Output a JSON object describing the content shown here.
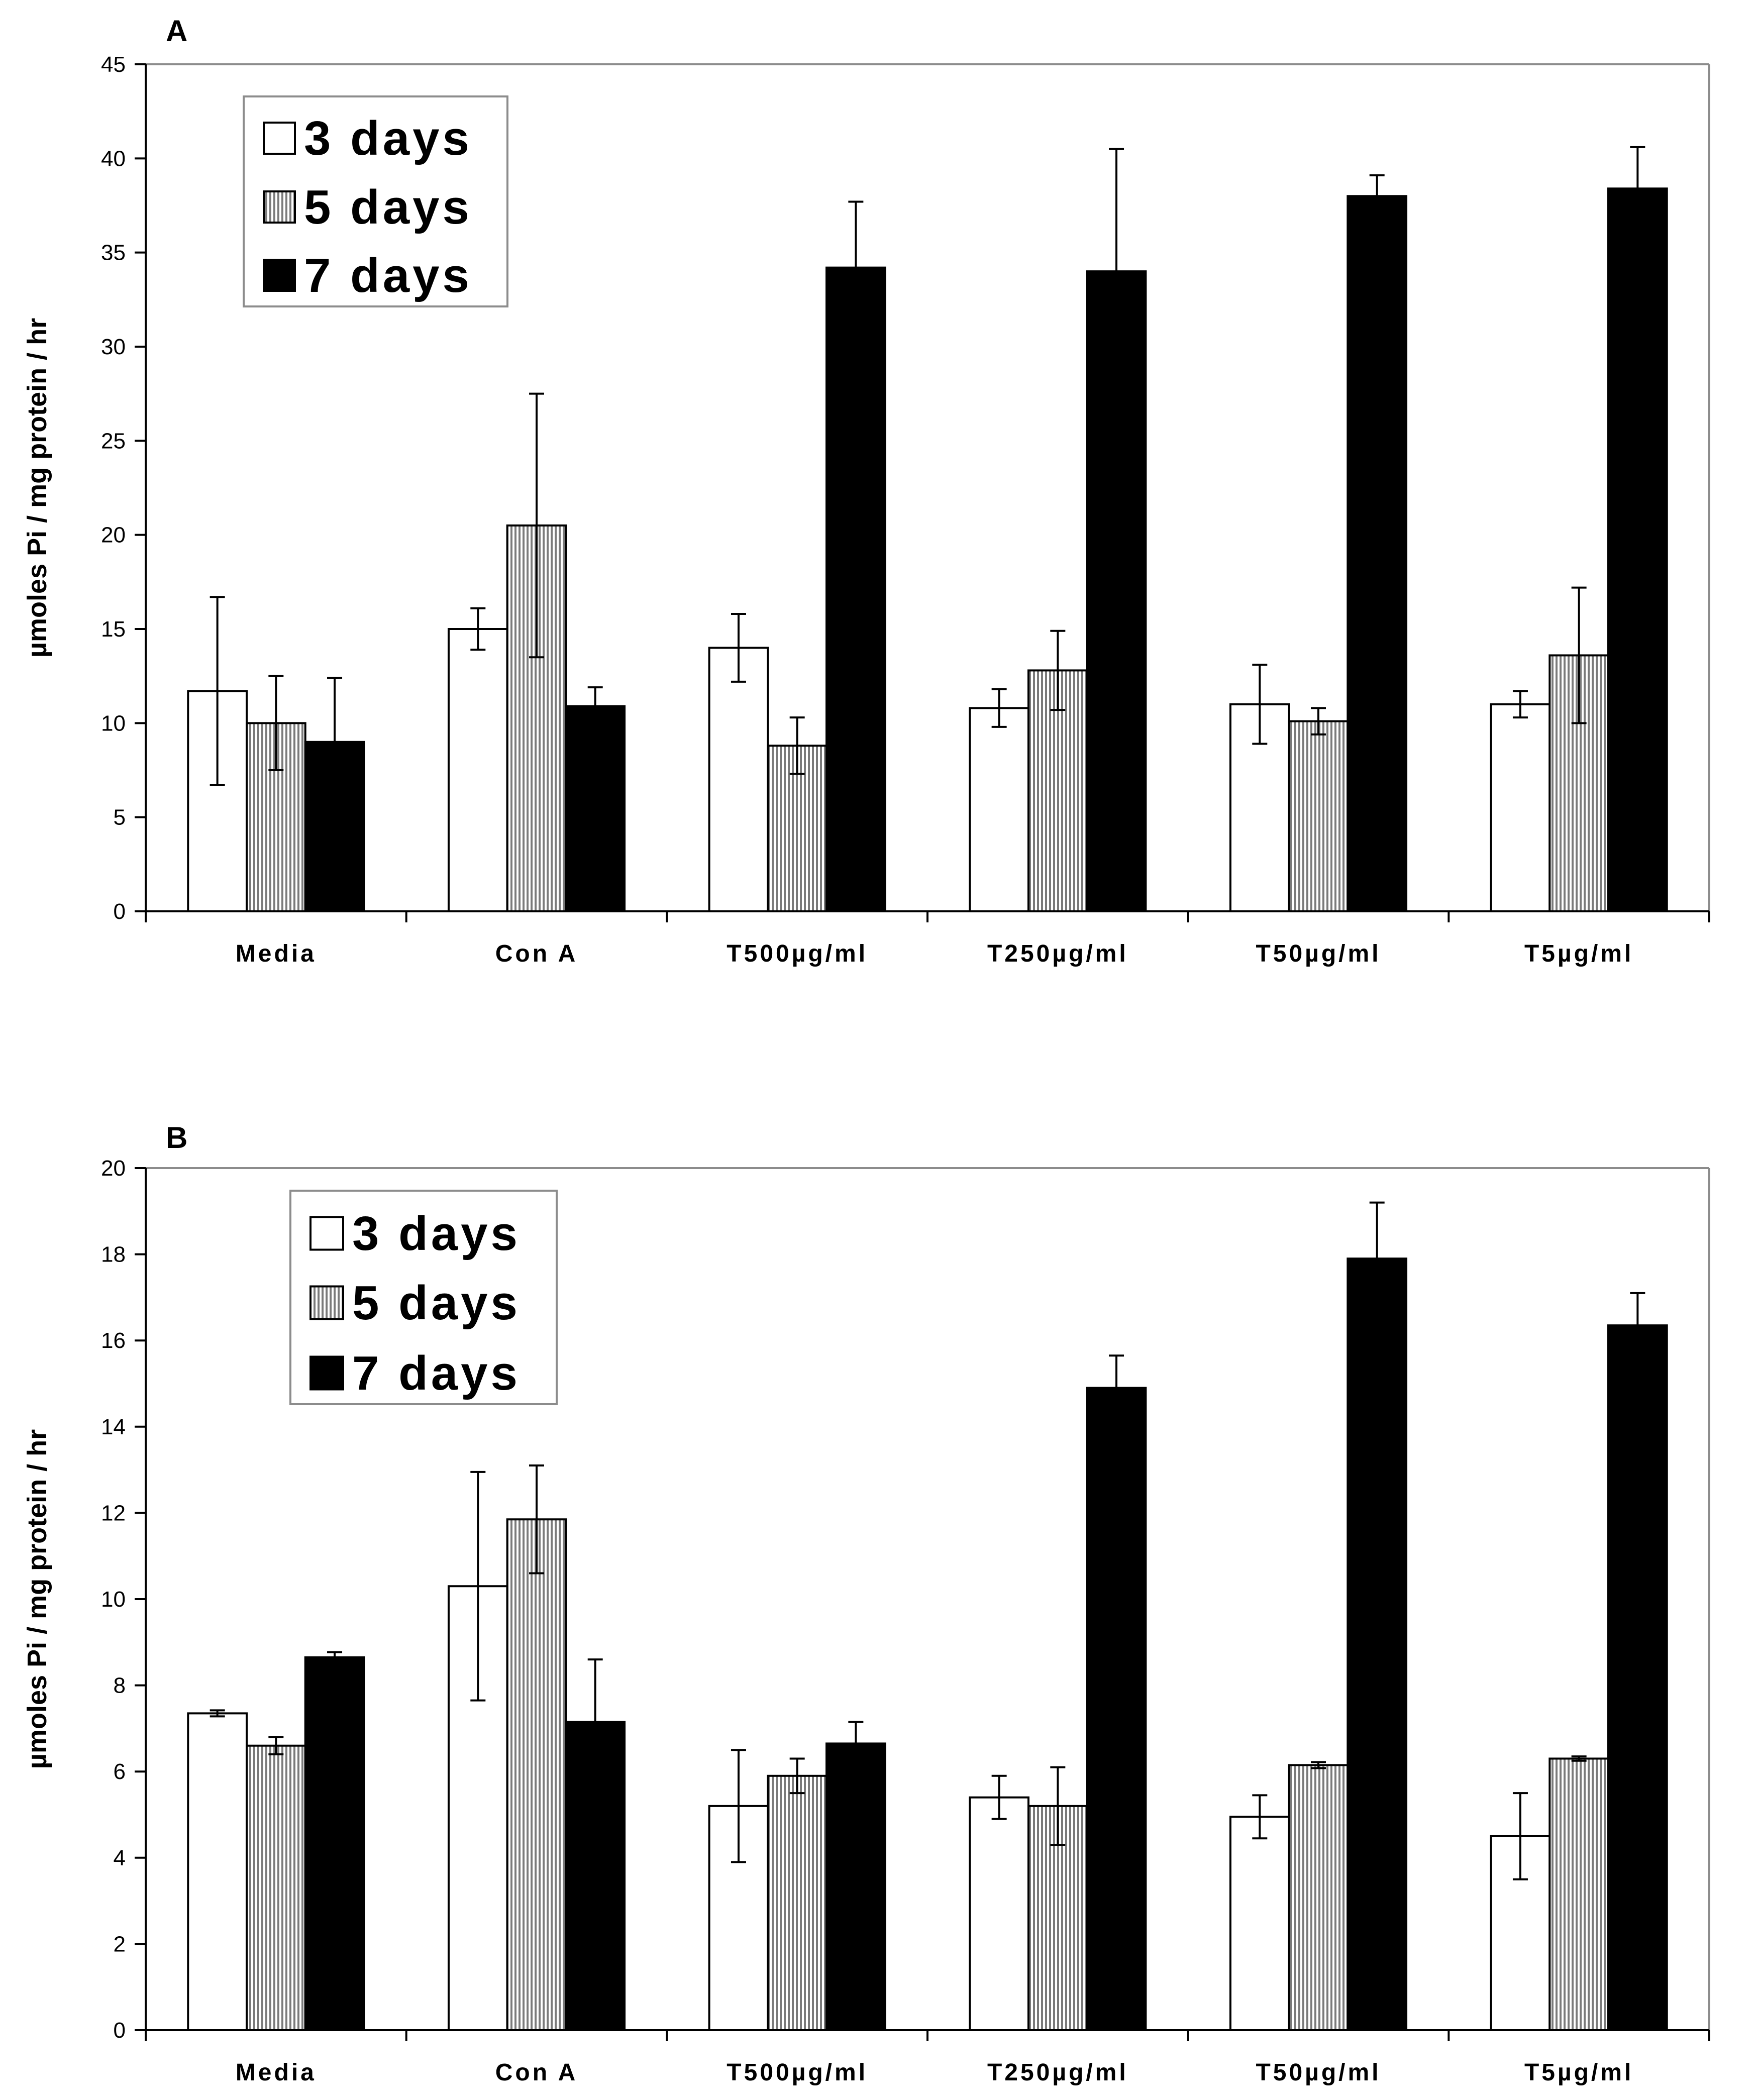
{
  "chart_data": [
    {
      "type": "bar",
      "panel_label": "A",
      "ylabel": "µmoles Pi / mg protein / hr",
      "ylim": [
        0,
        45
      ],
      "yticks": [
        "0",
        "5",
        "10",
        "15",
        "20",
        "25",
        "30",
        "35",
        "40",
        "45"
      ],
      "categories": [
        "Media",
        "Con A",
        "T500µg/ml",
        "T250µg/ml",
        "T50µg/ml",
        "T5µg/ml"
      ],
      "legend_position": "top-left",
      "series": [
        {
          "name": "3 days",
          "fill": "white",
          "values": [
            11.7,
            15.0,
            14.0,
            10.8,
            11.0,
            11.0
          ],
          "errors": [
            5.0,
            1.1,
            1.8,
            1.0,
            2.1,
            0.7
          ]
        },
        {
          "name": "5 days",
          "fill": "vertical-hatch",
          "values": [
            10.0,
            20.5,
            8.8,
            12.8,
            10.1,
            13.6
          ],
          "errors": [
            2.5,
            7.0,
            1.5,
            2.1,
            0.7,
            3.6
          ]
        },
        {
          "name": "7 days",
          "fill": "black",
          "values": [
            9.0,
            10.9,
            34.2,
            34.0,
            38.0,
            38.4
          ],
          "errors": [
            3.4,
            1.0,
            3.5,
            6.5,
            1.1,
            2.2
          ]
        }
      ]
    },
    {
      "type": "bar",
      "panel_label": "B",
      "ylabel": "µmoles Pi / mg protein / hr",
      "ylim": [
        0,
        20
      ],
      "yticks": [
        "0",
        "2",
        "4",
        "6",
        "8",
        "10",
        "12",
        "14",
        "16",
        "18",
        "20"
      ],
      "categories": [
        "Media",
        "Con A",
        "T500µg/ml",
        "T250µg/ml",
        "T50µg/ml",
        "T5µg/ml"
      ],
      "legend_position": "top-left",
      "series": [
        {
          "name": "3 days",
          "fill": "white",
          "values": [
            7.35,
            10.3,
            5.2,
            5.4,
            4.95,
            4.5
          ],
          "errors": [
            0.07,
            2.65,
            1.3,
            0.5,
            0.5,
            1.0
          ]
        },
        {
          "name": "5 days",
          "fill": "vertical-hatch",
          "values": [
            6.6,
            11.85,
            5.9,
            5.2,
            6.15,
            6.3
          ],
          "errors": [
            0.2,
            1.25,
            0.4,
            0.9,
            0.07,
            0.05
          ]
        },
        {
          "name": "7 days",
          "fill": "black",
          "values": [
            8.65,
            7.15,
            6.65,
            14.9,
            17.9,
            16.35
          ],
          "errors": [
            0.12,
            1.45,
            0.5,
            0.75,
            1.3,
            0.75
          ]
        }
      ]
    }
  ]
}
